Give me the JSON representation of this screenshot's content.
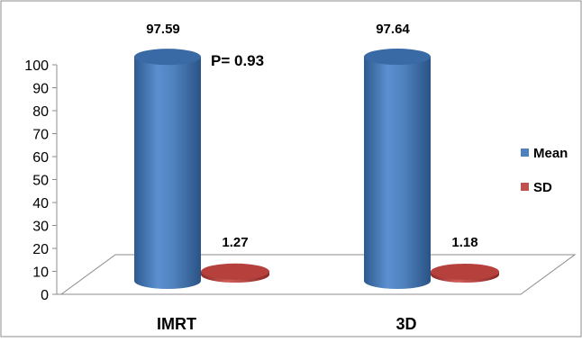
{
  "chart_data": {
    "type": "bar",
    "style": "3d-cylinder",
    "title": "",
    "xlabel": "",
    "ylabel": "",
    "categories": [
      "IMRT",
      "3D"
    ],
    "series": [
      {
        "name": "Mean",
        "values": [
          97.59,
          97.64
        ],
        "color": "#4F81BD",
        "labels": [
          "97.59",
          "97.64"
        ]
      },
      {
        "name": "SD",
        "values": [
          1.27,
          1.18
        ],
        "color": "#C0504D",
        "labels": [
          "1.27",
          "1.18"
        ]
      }
    ],
    "ylim": [
      0,
      100
    ],
    "yticks": [
      0,
      10,
      20,
      30,
      40,
      50,
      60,
      70,
      80,
      90,
      100
    ],
    "grid": false,
    "legend_position": "right",
    "annotations": [
      {
        "text": "P= 0.93",
        "category": "IMRT"
      }
    ]
  }
}
